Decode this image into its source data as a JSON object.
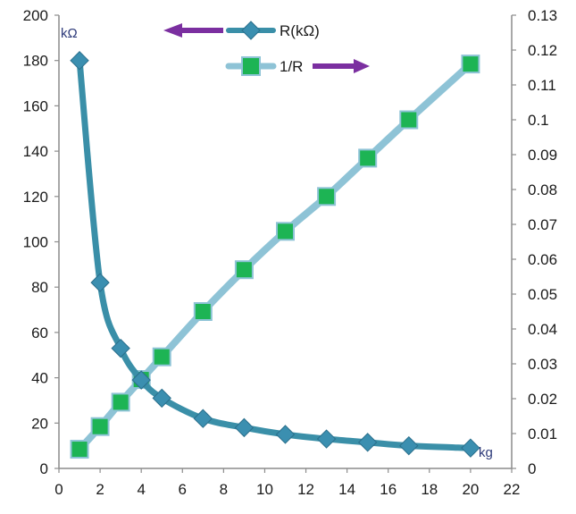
{
  "chart_data": {
    "type": "line",
    "title": "",
    "x": [
      1,
      2,
      3,
      4,
      5,
      7,
      9,
      11,
      13,
      15,
      17,
      20
    ],
    "x_unit": "kg",
    "xlim": [
      0,
      22
    ],
    "x_ticks": [
      "0",
      "2",
      "4",
      "6",
      "8",
      "10",
      "12",
      "14",
      "16",
      "18",
      "20",
      "22"
    ],
    "y_left": {
      "unit": "kΩ",
      "ylim": [
        0,
        200
      ],
      "ticks": [
        "0",
        "20",
        "40",
        "60",
        "80",
        "100",
        "120",
        "140",
        "160",
        "180",
        "200"
      ]
    },
    "y_right": {
      "ylim": [
        0,
        0.13
      ],
      "ticks": [
        "0",
        "0.01",
        "0.02",
        "0.03",
        "0.04",
        "0.05",
        "0.06",
        "0.07",
        "0.08",
        "0.09",
        "0.1",
        "0.11",
        "0.12",
        "0.13"
      ]
    },
    "series": [
      {
        "name": "R(kΩ)",
        "axis": "left",
        "marker": "diamond",
        "color": "#3a8fa8",
        "values": [
          180,
          82,
          53,
          39,
          31,
          22,
          18,
          15,
          13,
          11.5,
          10,
          9
        ]
      },
      {
        "name": "1/R",
        "axis": "right",
        "marker": "square",
        "color": "#8ec3d6",
        "marker_color": "#1db454",
        "values": [
          0.0055,
          0.012,
          0.019,
          0.0255,
          0.032,
          0.045,
          0.057,
          0.068,
          0.078,
          0.089,
          0.1,
          0.116
        ]
      }
    ],
    "legend": {
      "placement": "top-center",
      "arrow_color": "#7b2fa0"
    },
    "grid": false
  }
}
